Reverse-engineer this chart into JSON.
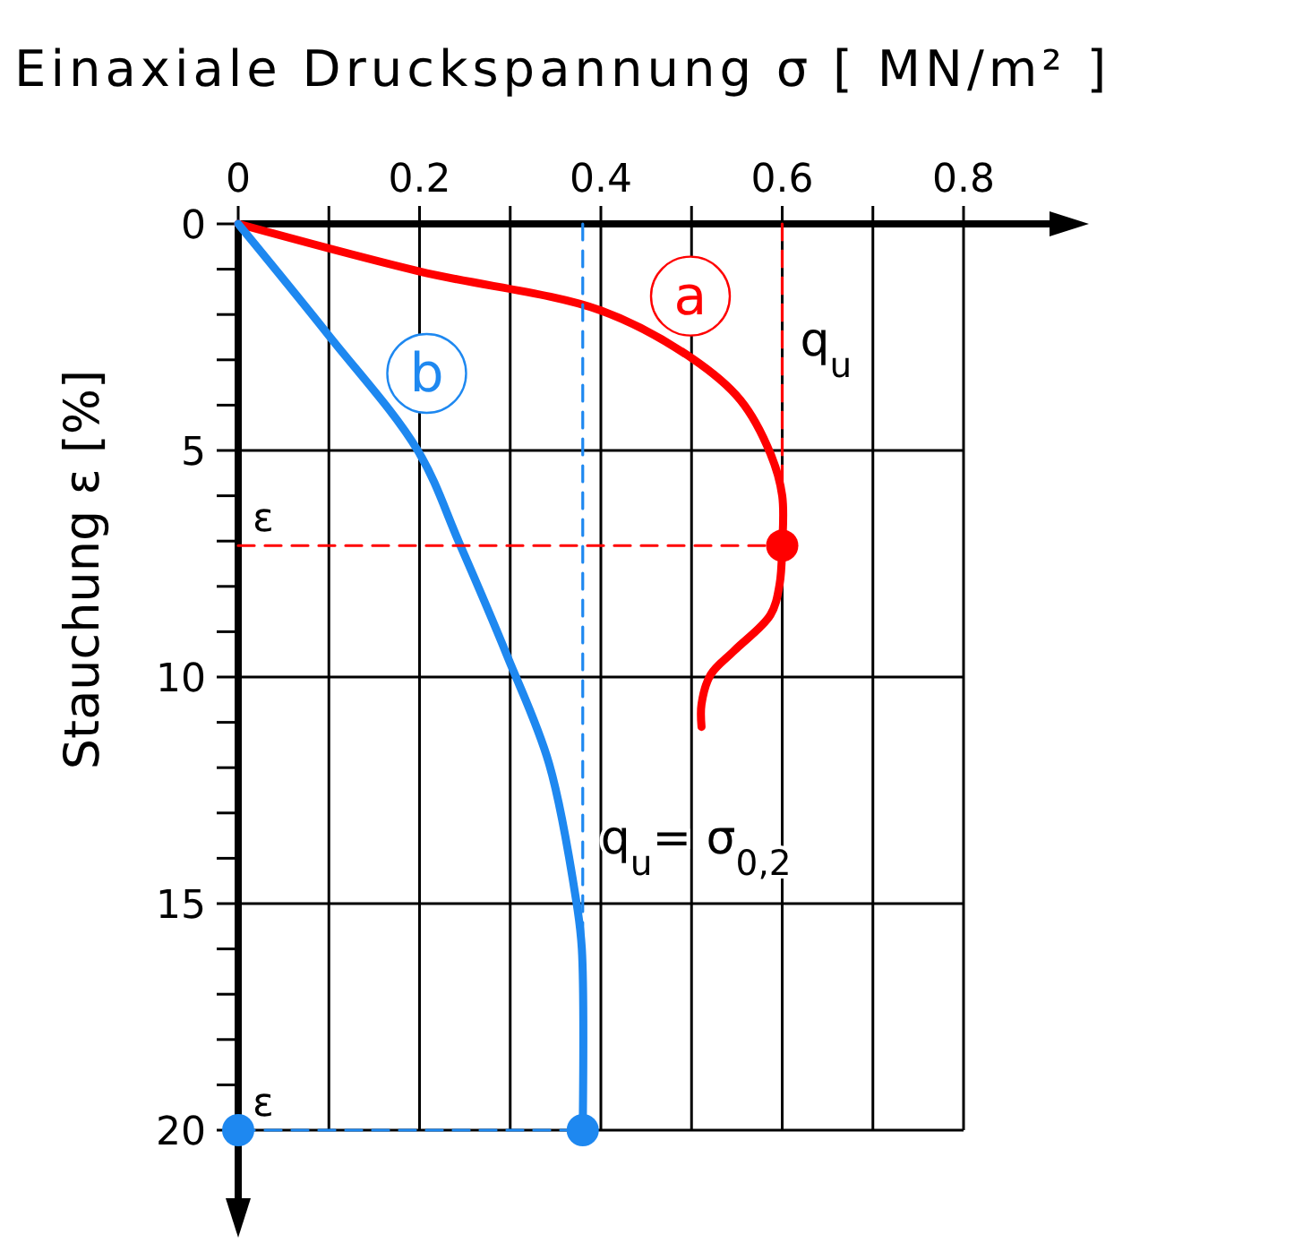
{
  "chart_data": {
    "type": "line",
    "xlabel": "Einaxiale Druckspannung σ [ MN/m² ]",
    "ylabel": "Stauchung ε [%]",
    "xlim": [
      0,
      0.8
    ],
    "ylim": [
      20,
      0
    ],
    "xticks": [
      0,
      {
        "value": 0.1,
        "label": null
      },
      0.2,
      {
        "value": 0.3,
        "label": null
      },
      0.4,
      {
        "value": 0.5,
        "label": null
      },
      0.6,
      {
        "value": 0.7,
        "label": null
      },
      0.8
    ],
    "yticks": [
      0,
      {
        "value": 1,
        "label": null
      },
      {
        "value": 2,
        "label": null
      },
      {
        "value": 3,
        "label": null
      },
      {
        "value": 4,
        "label": null
      },
      5,
      {
        "value": 6,
        "label": null
      },
      {
        "value": 7,
        "label": null
      },
      {
        "value": 8,
        "label": null
      },
      {
        "value": 9,
        "label": null
      },
      10,
      {
        "value": 11,
        "label": null
      },
      {
        "value": 12,
        "label": null
      },
      {
        "value": 13,
        "label": null
      },
      {
        "value": 14,
        "label": null
      },
      15,
      {
        "value": 16,
        "label": null
      },
      {
        "value": 17,
        "label": null
      },
      {
        "value": 18,
        "label": null
      },
      {
        "value": 19,
        "label": null
      },
      20
    ],
    "grid": true,
    "series": [
      {
        "name": "a",
        "color": "#ff0000",
        "x": [
          0,
          0.2,
          0.4,
          0.5,
          0.554,
          0.587,
          0.6,
          0.6,
          0.597,
          0.587,
          0.547,
          0.521,
          0.511,
          0.511
        ],
        "values": [
          0,
          1.05,
          1.91,
          2.96,
          3.89,
          5.07,
          6,
          7.1,
          7.97,
          8.63,
          9.42,
          9.95,
          10.6,
          11.1
        ]
      },
      {
        "name": "b",
        "color": "#1e88f0",
        "x": [
          0,
          0.099,
          0.198,
          0.244,
          0.297,
          0.343,
          0.373,
          0.379,
          0.38
        ],
        "values": [
          0,
          2.44,
          5,
          7.05,
          9.55,
          11.92,
          14.96,
          16,
          20
        ]
      },
      {
        "type": "line",
        "line_style": "dashed",
        "color": "#ff0000",
        "x": [
          0,
          0.6
        ],
        "values": [
          7.1,
          7.1
        ]
      },
      {
        "type": "line",
        "line_style": "dashed",
        "color": "#ff0000",
        "x": [
          0.6,
          0.6
        ],
        "values": [
          0,
          7.1
        ]
      },
      {
        "type": "line",
        "line_style": "dashed",
        "color": "#1e88f0",
        "x": [
          0,
          0.38
        ],
        "values": [
          20,
          20
        ]
      },
      {
        "type": "line",
        "line_style": "dashed",
        "color": "#1e88f0",
        "x": [
          0.38,
          0.38
        ],
        "values": [
          0,
          20
        ]
      },
      {
        "type": "scatter",
        "marker": "circle",
        "color": "#ff0000",
        "x": [
          0.6
        ],
        "values": [
          7.1
        ]
      },
      {
        "type": "scatter",
        "marker": "circle",
        "color": "#1e88f0",
        "x": [
          0,
          0.38
        ],
        "values": [
          20,
          20
        ]
      }
    ],
    "annotations": [
      {
        "text": "q$_{u}$",
        "x": 0.6,
        "y": 2.5
      },
      {
        "text": "q$_{u}$= σ$_{0,2}$",
        "x": 0.38,
        "y": 13.5
      },
      {
        "text": "ε",
        "x": 0,
        "y": 7.1
      },
      {
        "text": "ε",
        "x": 0,
        "y": 20
      }
    ]
  }
}
